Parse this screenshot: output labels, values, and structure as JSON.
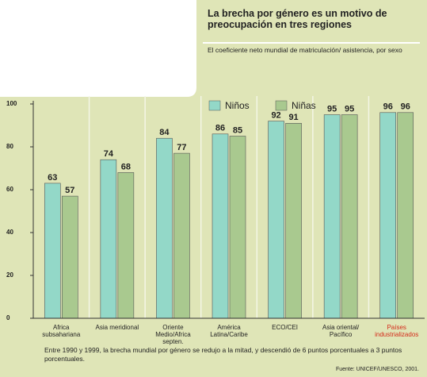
{
  "chart_data": {
    "type": "bar",
    "title": "La brecha por género es un motivo de preocupación en tres regiones",
    "subtitle": "El coeficiente neto mundial de matriculación/ asistencia, por sexo",
    "categories": [
      "Africa subsahariana",
      "Asia meridional",
      "Oriente Medio/Africa septen.",
      "América Latina/Caribe",
      "ECO/CEI",
      "Asia oriental/ Pacífico",
      "Países industrializados"
    ],
    "series": [
      {
        "name": "Niños",
        "color": "#93d8c8",
        "values": [
          63,
          74,
          84,
          86,
          92,
          95,
          96
        ]
      },
      {
        "name": "Niñas",
        "color": "#a9c98f",
        "values": [
          57,
          68,
          77,
          85,
          91,
          95,
          96
        ]
      }
    ],
    "ylim": [
      0,
      100
    ],
    "yticks": [
      0,
      20,
      40,
      60,
      80,
      100
    ],
    "grid": false,
    "note": "Entre 1990 y 1999, la brecha mundial por género se redujo a la mitad, y descendió de 6 puntos porcentuales a 3 puntos porcentuales.",
    "source": "Fuente: UNICEF/UNESCO, 2001."
  }
}
